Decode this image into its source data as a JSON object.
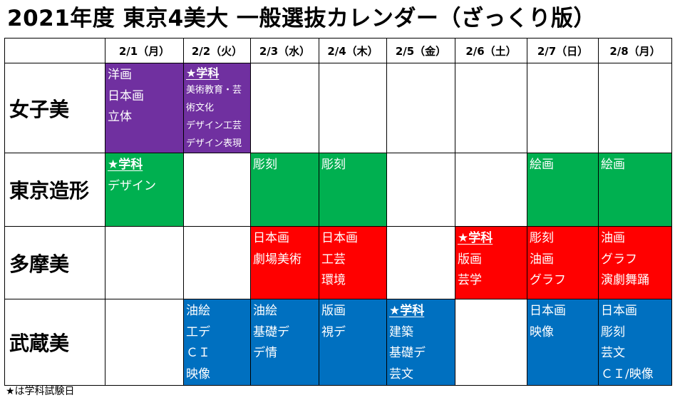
{
  "title": "2021年度 東京4美大 一般選抜カレンダー（ざっくり版）",
  "header": {
    "corner": "",
    "dates": [
      "2/1（月）",
      "2/2（火）",
      "2/3（水）",
      "2/4（木）",
      "2/5（金）",
      "2/6（土）",
      "2/7（日）",
      "2/8（月）"
    ]
  },
  "colors": {
    "女子美": "#7030a0",
    "東京造形": "#00b050",
    "多摩美": "#ff0000",
    "武蔵美": "#0070c0"
  },
  "rows": [
    {
      "name": "女子美",
      "cells": [
        [
          "洋画",
          "日本画",
          "立体"
        ],
        [
          "★学科",
          "美術教育・芸",
          "術文化",
          "デザイン工芸",
          "デザイン表現"
        ],
        [],
        [],
        [],
        [],
        [],
        []
      ]
    },
    {
      "name": "東京造形",
      "cells": [
        [
          "★学科",
          "デザイン"
        ],
        [],
        [
          "彫刻"
        ],
        [
          "彫刻"
        ],
        [],
        [],
        [
          "絵画"
        ],
        [
          "絵画"
        ]
      ]
    },
    {
      "name": "多摩美",
      "cells": [
        [],
        [],
        [
          "日本画",
          "劇場美術"
        ],
        [
          "日本画",
          "工芸",
          "環境"
        ],
        [],
        [
          "★学科",
          "版画",
          "芸学"
        ],
        [
          "彫刻",
          "油画",
          "グラフ"
        ],
        [
          "油画",
          "グラフ",
          "演劇舞踊"
        ]
      ]
    },
    {
      "name": "武蔵美",
      "cells": [
        [],
        [
          "油絵",
          "工デ",
          "ＣＩ",
          "映像"
        ],
        [
          "油絵",
          "基礎デ",
          "デ情"
        ],
        [
          "版画",
          "視デ"
        ],
        [
          "★学科",
          "建築",
          "基礎デ",
          "芸文"
        ],
        [],
        [
          "日本画",
          "映像"
        ],
        [
          "日本画",
          "彫刻",
          "芸文",
          "ＣＩ/映像"
        ]
      ]
    }
  ],
  "footnote": "★は学科試験日"
}
